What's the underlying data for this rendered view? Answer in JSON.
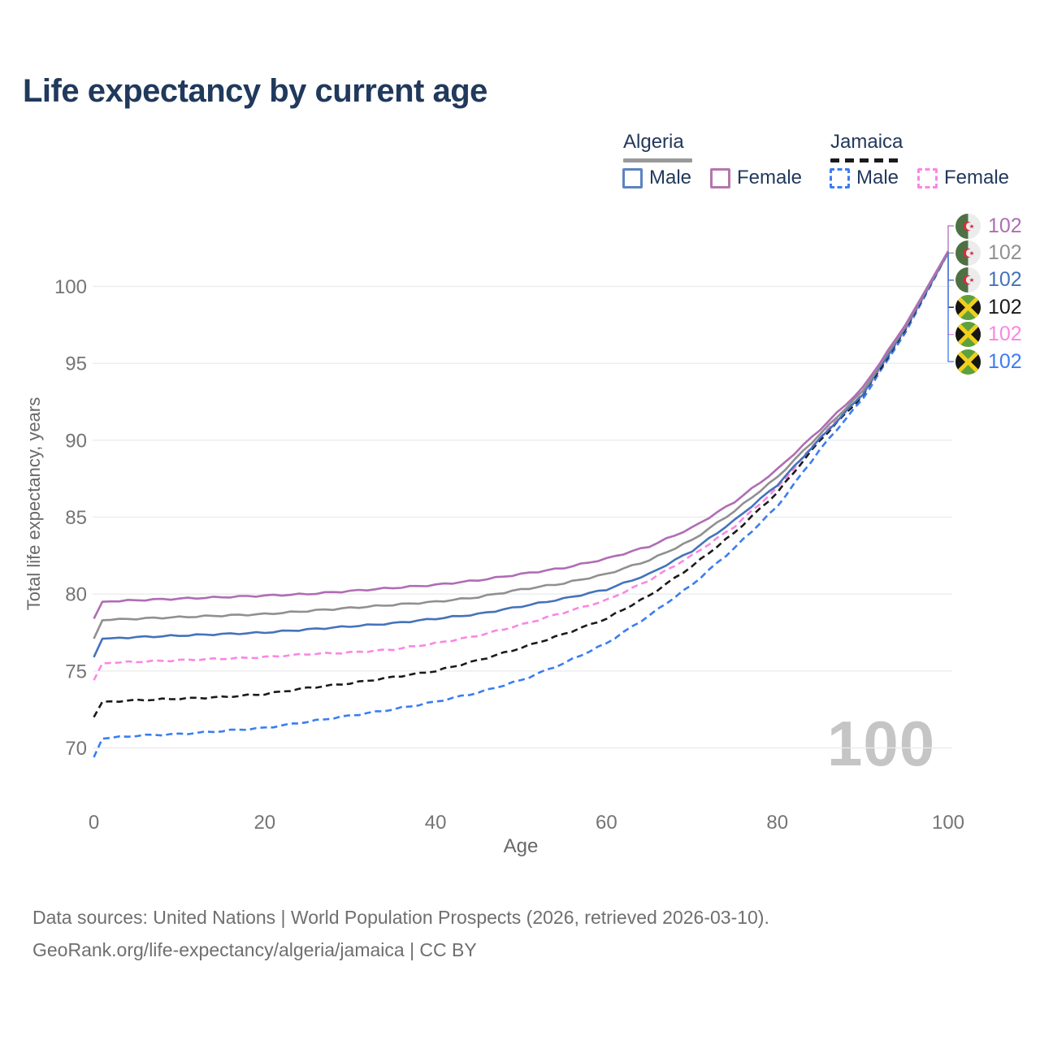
{
  "page": {
    "title": "Life expectancy by current age",
    "title_color": "#20395c"
  },
  "theme": {
    "background": "#ffffff",
    "grid_color": "#ebebeb",
    "tick_color": "#757575",
    "axis_title_color": "#686868",
    "footer_color": "#6f6f6f",
    "watermark_color": "#c5c5c5",
    "text_color": "#22395c"
  },
  "legend": {
    "groups": [
      {
        "country": "Algeria",
        "line_style": "solid",
        "line_color": "#9a9a9a",
        "items": [
          {
            "label": "Male",
            "color": "#5b84c2",
            "dash": "solid"
          },
          {
            "label": "Female",
            "color": "#b476ae",
            "dash": "solid"
          }
        ]
      },
      {
        "country": "Jamaica",
        "line_style": "dashed",
        "line_color": "#1a1a1a",
        "items": [
          {
            "label": "Male",
            "color": "#3b7df2",
            "dash": "dashed"
          },
          {
            "label": "Female",
            "color": "#fb86e3",
            "dash": "dashed"
          }
        ]
      }
    ]
  },
  "chart_data": {
    "type": "line",
    "title": "Life expectancy by current age",
    "xlabel": "Age",
    "ylabel": "Total life expectancy, years",
    "xlim": [
      0,
      100
    ],
    "ylim": [
      68.5,
      103.5
    ],
    "x_ticks": [
      0,
      20,
      40,
      60,
      80,
      100
    ],
    "y_ticks": [
      70,
      75,
      80,
      85,
      90,
      95,
      100
    ],
    "grid": "horizontal",
    "legend_position": "top-right",
    "watermark": "100",
    "series": [
      {
        "id": "algeria-female",
        "name": "Algeria Female",
        "country": "Algeria",
        "color": "#af6db4",
        "dash": "solid",
        "flag": "algeria",
        "end_label": "102",
        "points": [
          [
            0,
            78.4
          ],
          [
            1,
            79.5
          ],
          [
            5,
            79.6
          ],
          [
            10,
            79.7
          ],
          [
            15,
            79.8
          ],
          [
            20,
            79.9
          ],
          [
            25,
            80.0
          ],
          [
            30,
            80.2
          ],
          [
            35,
            80.4
          ],
          [
            40,
            80.6
          ],
          [
            45,
            80.9
          ],
          [
            50,
            81.3
          ],
          [
            55,
            81.7
          ],
          [
            60,
            82.3
          ],
          [
            65,
            83.1
          ],
          [
            70,
            84.3
          ],
          [
            75,
            86.0
          ],
          [
            80,
            88.1
          ],
          [
            85,
            90.7
          ],
          [
            90,
            93.4
          ],
          [
            95,
            97.5
          ],
          [
            100,
            102.3
          ]
        ]
      },
      {
        "id": "algeria",
        "name": "Algeria",
        "country": "Algeria",
        "color": "#909090",
        "dash": "solid",
        "flag": "algeria",
        "end_label": "102",
        "points": [
          [
            0,
            77.1
          ],
          [
            1,
            78.3
          ],
          [
            5,
            78.4
          ],
          [
            10,
            78.5
          ],
          [
            15,
            78.6
          ],
          [
            20,
            78.7
          ],
          [
            25,
            78.9
          ],
          [
            30,
            79.1
          ],
          [
            35,
            79.3
          ],
          [
            40,
            79.5
          ],
          [
            45,
            79.8
          ],
          [
            50,
            80.3
          ],
          [
            55,
            80.7
          ],
          [
            60,
            81.3
          ],
          [
            65,
            82.2
          ],
          [
            70,
            83.5
          ],
          [
            75,
            85.4
          ],
          [
            80,
            87.6
          ],
          [
            85,
            90.4
          ],
          [
            90,
            93.2
          ],
          [
            95,
            97.4
          ],
          [
            100,
            102.25
          ]
        ]
      },
      {
        "id": "algeria-male",
        "name": "Algeria Male",
        "country": "Algeria",
        "color": "#4473bb",
        "dash": "solid",
        "flag": "algeria",
        "end_label": "102",
        "points": [
          [
            0,
            75.9
          ],
          [
            1,
            77.1
          ],
          [
            5,
            77.2
          ],
          [
            10,
            77.3
          ],
          [
            15,
            77.4
          ],
          [
            20,
            77.5
          ],
          [
            25,
            77.7
          ],
          [
            30,
            77.9
          ],
          [
            35,
            78.1
          ],
          [
            40,
            78.4
          ],
          [
            45,
            78.7
          ],
          [
            50,
            79.2
          ],
          [
            55,
            79.7
          ],
          [
            60,
            80.3
          ],
          [
            65,
            81.3
          ],
          [
            70,
            82.8
          ],
          [
            75,
            84.8
          ],
          [
            80,
            87.1
          ],
          [
            85,
            90.1
          ],
          [
            90,
            93.0
          ],
          [
            95,
            97.3
          ],
          [
            100,
            102.2
          ]
        ]
      },
      {
        "id": "jamaica",
        "name": "Jamaica",
        "country": "Jamaica",
        "color": "#1a1a1a",
        "dash": "dashed",
        "flag": "jamaica",
        "end_label": "102",
        "points": [
          [
            0,
            72.0
          ],
          [
            1,
            73.0
          ],
          [
            5,
            73.1
          ],
          [
            10,
            73.2
          ],
          [
            15,
            73.3
          ],
          [
            20,
            73.5
          ],
          [
            25,
            73.9
          ],
          [
            30,
            74.2
          ],
          [
            35,
            74.6
          ],
          [
            40,
            75.0
          ],
          [
            45,
            75.7
          ],
          [
            50,
            76.5
          ],
          [
            55,
            77.4
          ],
          [
            60,
            78.4
          ],
          [
            65,
            79.9
          ],
          [
            70,
            81.8
          ],
          [
            75,
            84.0
          ],
          [
            80,
            86.6
          ],
          [
            85,
            90.0
          ],
          [
            90,
            92.9
          ],
          [
            95,
            97.2
          ],
          [
            100,
            102.2
          ]
        ]
      },
      {
        "id": "jamaica-female",
        "name": "Jamaica Female",
        "country": "Jamaica",
        "color": "#fb86e3",
        "dash": "dashed",
        "flag": "jamaica",
        "end_label": "102",
        "points": [
          [
            0,
            74.4
          ],
          [
            1,
            75.5
          ],
          [
            5,
            75.6
          ],
          [
            10,
            75.7
          ],
          [
            15,
            75.8
          ],
          [
            20,
            75.9
          ],
          [
            25,
            76.1
          ],
          [
            30,
            76.2
          ],
          [
            35,
            76.4
          ],
          [
            40,
            76.8
          ],
          [
            45,
            77.3
          ],
          [
            50,
            78.0
          ],
          [
            55,
            78.8
          ],
          [
            60,
            79.6
          ],
          [
            65,
            80.9
          ],
          [
            70,
            82.5
          ],
          [
            75,
            84.4
          ],
          [
            80,
            86.9
          ],
          [
            85,
            90.2
          ],
          [
            90,
            93.0
          ],
          [
            95,
            97.2
          ],
          [
            100,
            102.2
          ]
        ]
      },
      {
        "id": "jamaica-male",
        "name": "Jamaica Male",
        "country": "Jamaica",
        "color": "#3b7df2",
        "dash": "dashed",
        "flag": "jamaica",
        "end_label": "102",
        "points": [
          [
            0,
            69.4
          ],
          [
            1,
            70.6
          ],
          [
            5,
            70.8
          ],
          [
            10,
            70.9
          ],
          [
            15,
            71.1
          ],
          [
            20,
            71.3
          ],
          [
            25,
            71.7
          ],
          [
            30,
            72.1
          ],
          [
            35,
            72.5
          ],
          [
            40,
            73.0
          ],
          [
            45,
            73.6
          ],
          [
            50,
            74.4
          ],
          [
            55,
            75.5
          ],
          [
            60,
            76.8
          ],
          [
            65,
            78.6
          ],
          [
            70,
            80.6
          ],
          [
            75,
            83.0
          ],
          [
            80,
            85.7
          ],
          [
            85,
            89.4
          ],
          [
            90,
            92.7
          ],
          [
            95,
            97.0
          ],
          [
            100,
            102.2
          ]
        ]
      }
    ]
  },
  "footer": {
    "line1": "Data sources: United Nations | World Population Prospects (2026, retrieved 2026-03-10).",
    "line2": "GeoRank.org/life-expectancy/algeria/jamaica | CC BY"
  }
}
